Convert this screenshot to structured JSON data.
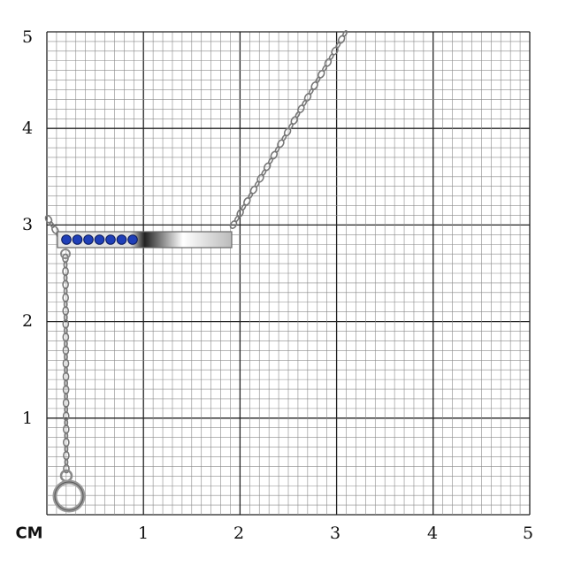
{
  "unit_label": "CM",
  "x_ticks": [
    "1",
    "2",
    "3",
    "4",
    "5"
  ],
  "y_ticks": [
    "1",
    "2",
    "3",
    "4",
    "5"
  ],
  "grid": {
    "range_cm": [
      0,
      5
    ],
    "minor_step_mm": 1,
    "major_color": "#222222",
    "minor_color": "#8a8a8a"
  },
  "product": {
    "name": "bar-necklace",
    "stone_count": 7,
    "stone_color": "#1f3fb8",
    "metal_color": "#c8c8c8"
  }
}
